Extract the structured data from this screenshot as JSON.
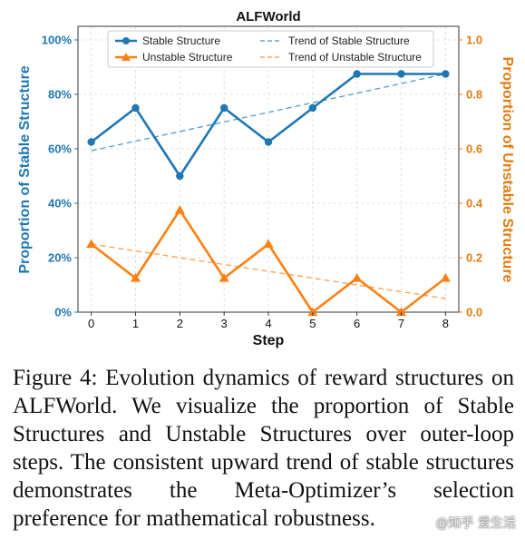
{
  "chart_data": {
    "type": "line",
    "title": "ALFWorld",
    "xlabel": "Step",
    "ylabel_left": "Proportion of Stable Structure",
    "ylabel_right": "Proportion of Unstable Structure",
    "x": [
      0,
      1,
      2,
      3,
      4,
      5,
      6,
      7,
      8
    ],
    "xlim": [
      -0.3,
      8.3
    ],
    "ylim_left": [
      0,
      1.05
    ],
    "ylim_right": [
      0,
      1.05
    ],
    "yticks_left": [
      "0%",
      "20%",
      "40%",
      "60%",
      "80%",
      "100%"
    ],
    "yticks_right": [
      "0.0",
      "0.2",
      "0.4",
      "0.6",
      "0.8",
      "1.0"
    ],
    "grid": true,
    "legend_position": "top",
    "series": [
      {
        "name": "Stable Structure",
        "axis": "left",
        "marker": "circle",
        "color": "#1f77b4",
        "values": [
          0.625,
          0.75,
          0.5,
          0.75,
          0.625,
          0.75,
          0.875,
          0.875,
          0.875
        ]
      },
      {
        "name": "Unstable Structure",
        "axis": "right",
        "marker": "triangle",
        "color": "#ff7f0e",
        "values": [
          0.25,
          0.125,
          0.375,
          0.125,
          0.25,
          0.0,
          0.125,
          0.0,
          0.125
        ]
      }
    ],
    "trends": [
      {
        "name": "Trend of Stable Structure",
        "color": "#1f77b4",
        "start": 0.593,
        "end": 0.875
      },
      {
        "name": "Trend of Unstable Structure",
        "color": "#ff7f0e",
        "start": 0.25,
        "end": 0.05
      }
    ]
  },
  "caption": "Figure 4: Evolution dynamics of reward structures on ALFWorld. We visualize the proportion of Stable Structures and Unstable Structures over outer-loop steps. The consistent upward trend of stable structures demonstrates the Meta-Optimizer’s selection preference for mathematical robustness.",
  "watermark": "@知乎 爱生活"
}
